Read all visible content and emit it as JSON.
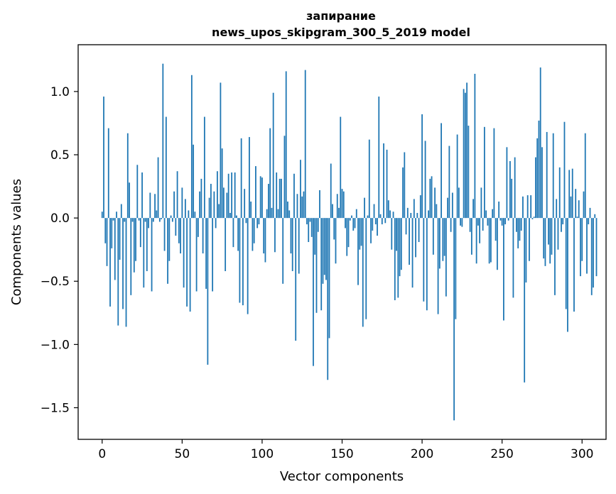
{
  "chart_data": {
    "type": "bar",
    "title": "запирание",
    "subtitle": "news_upos_skipgram_300_5_2019 model",
    "xlabel": "Vector components",
    "ylabel": "Components values",
    "xlim": [
      -15,
      315
    ],
    "ylim": [
      -1.75,
      1.37
    ],
    "x_ticks": [
      0,
      50,
      100,
      150,
      200,
      250,
      300
    ],
    "x_tick_labels": [
      "0",
      "50",
      "100",
      "150",
      "200",
      "250",
      "300"
    ],
    "y_ticks": [
      1.0,
      0.5,
      0.0,
      -0.5,
      -1.0,
      -1.5
    ],
    "y_tick_labels": [
      "1.0",
      "0.5",
      "0.0",
      "−0.5",
      "−1.0",
      "−1.5"
    ],
    "grid": false,
    "bar_color": "#1f77b4",
    "values": [
      0.05,
      0.96,
      -0.2,
      -0.38,
      0.71,
      -0.7,
      -0.24,
      -0.02,
      -0.49,
      0.05,
      -0.85,
      -0.33,
      0.11,
      -0.72,
      -0.03,
      -0.86,
      0.67,
      0.28,
      -0.61,
      -0.03,
      -0.43,
      -0.34,
      0.42,
      -0.02,
      -0.23,
      0.36,
      -0.55,
      -0.03,
      -0.42,
      -0.08,
      0.2,
      -0.58,
      -0.03,
      0.19,
      0.06,
      0.48,
      -0.03,
      -0.01,
      1.22,
      -0.26,
      0.8,
      -0.52,
      -0.34,
      0.02,
      -0.03,
      0.21,
      -0.14,
      0.37,
      -0.2,
      -0.28,
      0.24,
      -0.55,
      0.15,
      -0.7,
      0.06,
      -0.74,
      1.13,
      0.58,
      0.05,
      -0.58,
      -0.15,
      0.21,
      0.31,
      -0.28,
      0.8,
      -0.56,
      -1.16,
      0.16,
      0.27,
      -0.58,
      0.21,
      -0.08,
      0.37,
      0.11,
      1.07,
      0.55,
      0.24,
      -0.42,
      0.2,
      0.35,
      0.04,
      0.36,
      -0.23,
      0.36,
      0.02,
      -0.26,
      -0.67,
      0.63,
      -0.69,
      0.23,
      -0.04,
      -0.76,
      0.64,
      0.13,
      -0.26,
      -0.2,
      0.41,
      -0.08,
      -0.05,
      0.33,
      0.32,
      -0.28,
      -0.35,
      0.07,
      0.27,
      0.71,
      0.08,
      0.99,
      -0.27,
      0.36,
      0.07,
      0.31,
      0.31,
      -0.52,
      0.65,
      1.16,
      0.13,
      0.06,
      -0.28,
      -0.42,
      0.35,
      -0.97,
      0.19,
      -0.44,
      0.46,
      0.17,
      0.21,
      1.17,
      -0.05,
      -0.19,
      -0.03,
      -0.15,
      -1.17,
      -0.29,
      -0.75,
      -0.11,
      0.22,
      -0.73,
      -0.52,
      -0.45,
      -0.49,
      -1.28,
      -0.95,
      0.43,
      0.11,
      -0.17,
      -0.36,
      0.19,
      0.08,
      0.8,
      0.23,
      0.21,
      -0.08,
      -0.3,
      -0.23,
      -0.02,
      0.02,
      -0.1,
      -0.08,
      0.07,
      -0.53,
      -0.25,
      -0.22,
      -0.86,
      0.16,
      -0.8,
      0.02,
      0.62,
      -0.2,
      -0.1,
      0.11,
      -0.05,
      -0.14,
      0.96,
      0.03,
      -0.05,
      0.59,
      -0.04,
      0.54,
      0.14,
      0.06,
      -0.25,
      0.05,
      -0.65,
      -0.26,
      -0.63,
      -0.46,
      -0.41,
      0.4,
      0.52,
      -0.13,
      0.08,
      -0.37,
      0.04,
      -0.55,
      0.15,
      -0.31,
      0.04,
      -0.19,
      0.18,
      0.82,
      -0.66,
      0.61,
      -0.73,
      0.06,
      0.31,
      0.33,
      -0.29,
      0.24,
      0.11,
      -0.76,
      -0.4,
      0.75,
      -0.34,
      -0.3,
      -0.62,
      0.16,
      0.57,
      -0.11,
      0.2,
      -1.6,
      -0.8,
      0.66,
      0.24,
      -0.06,
      -0.07,
      1.02,
      0.99,
      1.07,
      0.73,
      -0.11,
      -0.29,
      0.15,
      1.14,
      -0.36,
      -0.06,
      -0.2,
      0.24,
      -0.1,
      0.72,
      0.06,
      -0.06,
      -0.36,
      -0.35,
      0.07,
      0.71,
      -0.18,
      -0.41,
      0.13,
      -0.02,
      -0.06,
      -0.81,
      -0.05,
      0.56,
      -0.02,
      0.45,
      0.31,
      -0.63,
      0.48,
      -0.11,
      -0.24,
      -0.18,
      -0.1,
      0.17,
      -1.3,
      -0.51,
      0.18,
      -0.34,
      0.18,
      -0.01,
      0.01,
      0.48,
      0.63,
      0.77,
      1.19,
      0.56,
      -0.32,
      -0.38,
      0.68,
      -0.21,
      -0.36,
      -0.29,
      0.67,
      -0.61,
      0.15,
      -0.25,
      0.4,
      -0.11,
      -0.05,
      0.76,
      -0.72,
      -0.9,
      0.38,
      0.17,
      0.39,
      -0.74,
      0.23,
      0.01,
      0.14,
      -0.46,
      -0.34,
      0.21,
      0.67,
      -0.44,
      -0.05,
      0.08,
      -0.61,
      -0.55,
      0.03,
      -0.46
    ]
  }
}
